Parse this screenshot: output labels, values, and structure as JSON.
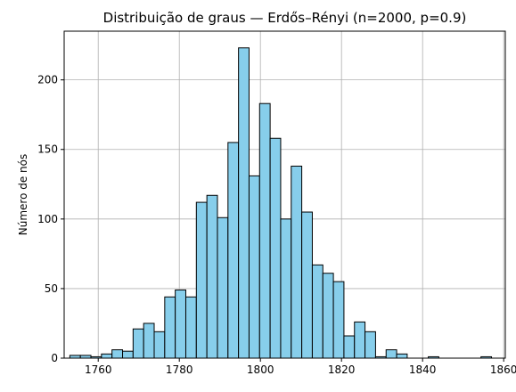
{
  "chart_data": {
    "type": "bar",
    "title": "Distribuição de graus — Erdős–Rényi (n=2000, p=0.9)",
    "xlabel": "",
    "ylabel": "Número de nós",
    "xlim": [
      1751.6,
      1860.4
    ],
    "ylim": [
      0,
      235
    ],
    "grid": true,
    "xticks": [
      1760,
      1780,
      1800,
      1820,
      1840,
      1860
    ],
    "yticks": [
      0,
      50,
      100,
      150,
      200
    ],
    "bin_edges": [
      1753.0,
      1755.6,
      1758.2,
      1760.8,
      1763.4,
      1766.0,
      1768.6,
      1771.2,
      1773.8,
      1776.4,
      1779.0,
      1781.6,
      1784.2,
      1786.8,
      1789.4,
      1792.0,
      1794.6,
      1797.2,
      1799.8,
      1802.4,
      1805.0,
      1807.6,
      1810.2,
      1812.8,
      1815.4,
      1818.0,
      1820.6,
      1823.2,
      1825.8,
      1828.4,
      1831.0,
      1833.6,
      1836.2,
      1838.8,
      1841.4,
      1844.0,
      1846.6,
      1849.2,
      1851.8,
      1854.4,
      1857.0
    ],
    "values": [
      2,
      2,
      1,
      3,
      6,
      5,
      21,
      25,
      19,
      44,
      49,
      44,
      112,
      117,
      101,
      155,
      223,
      131,
      183,
      158,
      100,
      138,
      105,
      67,
      61,
      55,
      16,
      26,
      19,
      1,
      6,
      3,
      0,
      0,
      1,
      0,
      0,
      0,
      0,
      1
    ],
    "bar_color": "#87ceeb",
    "edge_color": "#000000",
    "grid_color": "#b0b0b0"
  }
}
